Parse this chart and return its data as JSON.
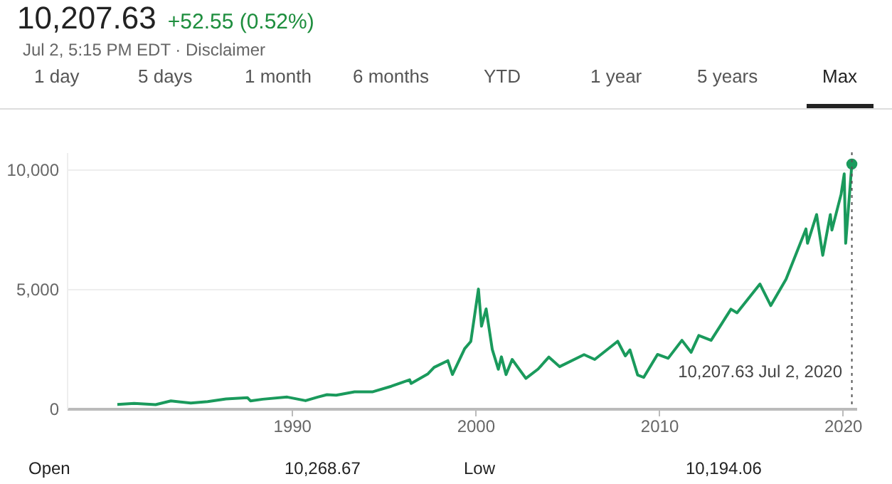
{
  "chart_data": {
    "type": "line",
    "title": "10,207.63",
    "subtitle": "Jul 2, 5:15 PM EDT · Disclaimer",
    "x": [
      "1980-07",
      "1981-06",
      "1982-08",
      "1983-06",
      "1984-07",
      "1985-06",
      "1986-06",
      "1987-08",
      "1987-10",
      "1988-06",
      "1989-10",
      "1990-10",
      "1991-06",
      "1991-12",
      "1992-06",
      "1993-06",
      "1994-06",
      "1995-06",
      "1996-06",
      "1996-07",
      "1997-06",
      "1997-10",
      "1998-07",
      "1998-10",
      "1999-06",
      "1999-10",
      "2000-03",
      "2000-05",
      "2000-08",
      "2000-12",
      "2001-04",
      "2001-06",
      "2001-09",
      "2002-01",
      "2002-10",
      "2003-06",
      "2004-01",
      "2004-08",
      "2005-12",
      "2006-07",
      "2007-10",
      "2008-03",
      "2008-06",
      "2008-11",
      "2009-03",
      "2009-12",
      "2010-07",
      "2011-04",
      "2011-10",
      "2012-03",
      "2012-11",
      "2013-12",
      "2014-04",
      "2015-07",
      "2016-02",
      "2016-12",
      "2018-01",
      "2018-02",
      "2018-08",
      "2018-12",
      "2019-05",
      "2019-06",
      "2019-12",
      "2020-02",
      "2020-03",
      "2020-07-02"
    ],
    "series": [
      {
        "color": "#1a9a5c",
        "values": [
          170,
          215,
          165,
          320,
          230,
          290,
          400,
          455,
          320,
          390,
          480,
          330,
          480,
          580,
          560,
          700,
          700,
          930,
          1200,
          1050,
          1450,
          1720,
          2000,
          1420,
          2500,
          2800,
          4990,
          3440,
          4160,
          2470,
          1640,
          2160,
          1420,
          2050,
          1260,
          1650,
          2150,
          1750,
          2250,
          2050,
          2810,
          2200,
          2450,
          1400,
          1300,
          2260,
          2100,
          2850,
          2350,
          3050,
          2850,
          4150,
          4000,
          5200,
          4300,
          5400,
          7500,
          6900,
          8100,
          6400,
          8100,
          7450,
          8950,
          9800,
          6900,
          10207.63
        ]
      },
      {
        "type": "scatter",
        "marker": "circle",
        "color": "#1a9a5c",
        "x": [
          "2020-07-02"
        ],
        "values": [
          10207.63
        ]
      }
    ],
    "xlim": [
      "1977-10",
      "2020-10"
    ],
    "xticks": [
      {
        "value": "1990",
        "label": "1990"
      },
      {
        "value": "2000",
        "label": "2000"
      },
      {
        "value": "2010",
        "label": "2010"
      },
      {
        "value": "2020",
        "label": "2020"
      }
    ],
    "ylim": [
      0,
      10700
    ],
    "yticks": [
      0,
      {
        "value": 5000,
        "label": "5,000"
      },
      {
        "value": 10000,
        "label": "10,000"
      }
    ],
    "grid": "y",
    "marker": "none",
    "line_style": "solid",
    "ref_lines": [
      {
        "axis": "x",
        "value": "2020-07-02",
        "line_style": "dotted",
        "color": "#555555"
      }
    ],
    "annotations": [
      "+52.55 (0.52%)",
      "1 day",
      "5 days",
      "1 month",
      "6 months",
      "YTD",
      "1 year",
      "5 years",
      "Max",
      "Open",
      "10,268.67",
      "Low",
      "10,194.06",
      "10,207.63  Jul 2, 2020"
    ]
  }
}
